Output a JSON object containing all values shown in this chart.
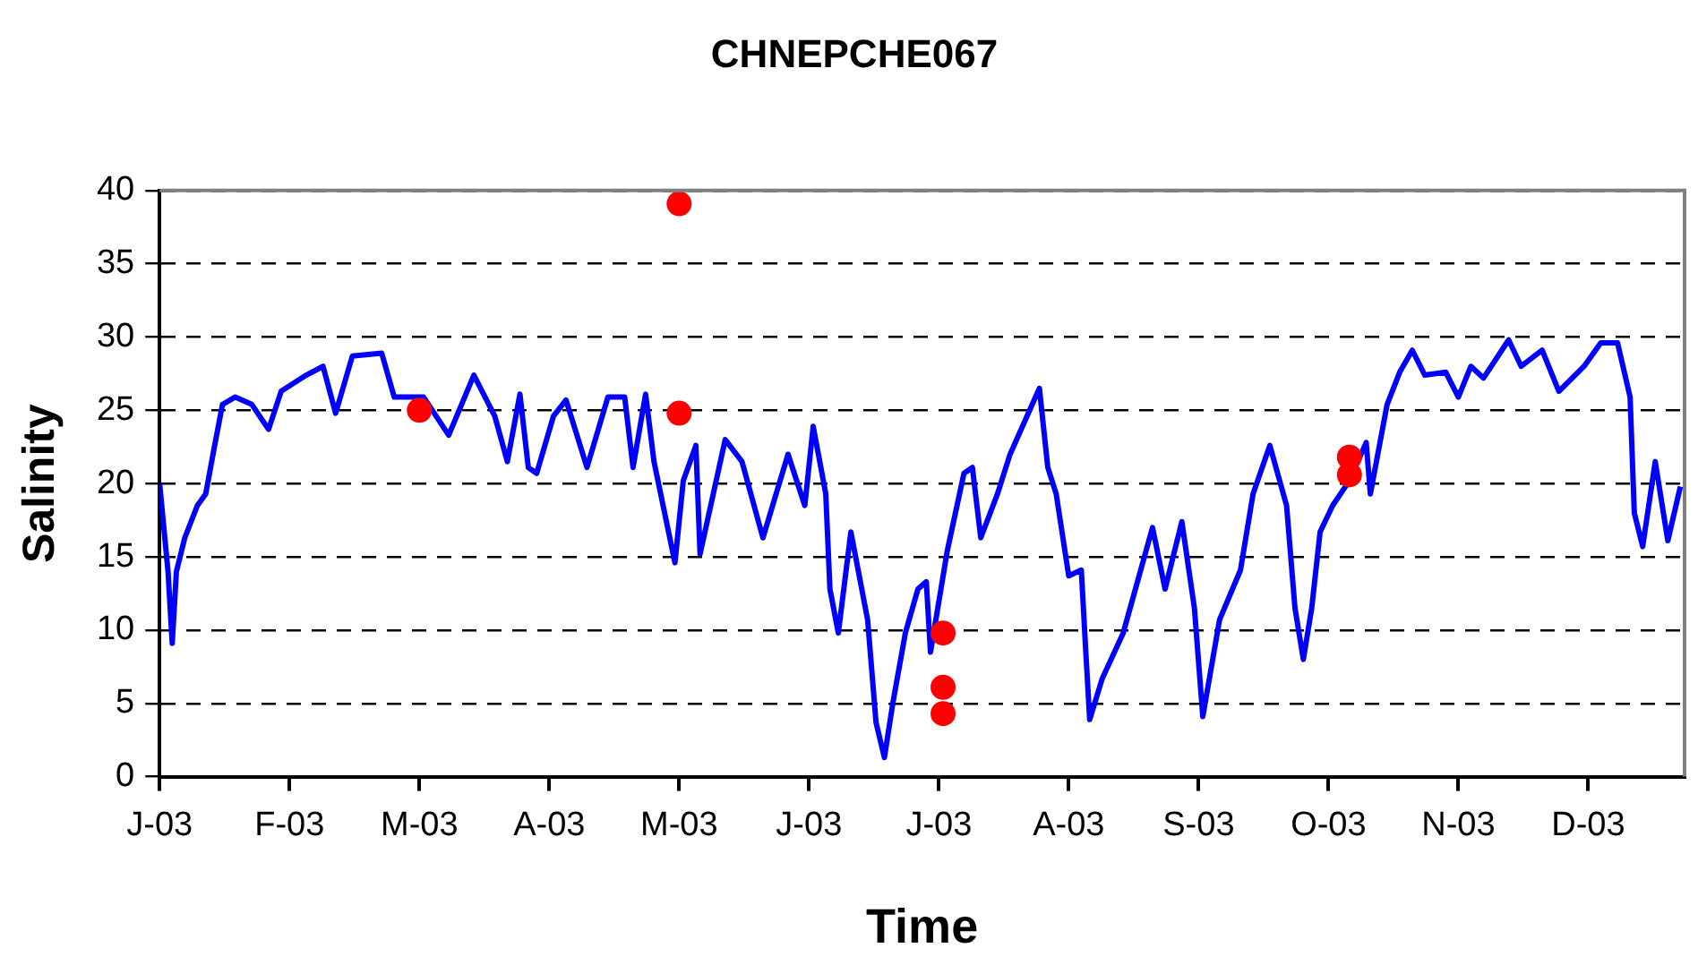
{
  "chart_data": {
    "type": "line",
    "title": "CHNEPCHE067",
    "xlabel": "Time",
    "ylabel": "Salinity",
    "xlim": [
      "2003-01-01",
      "2003-12-31"
    ],
    "xticks": [
      {
        "value": "2003-01-01",
        "label": "J-03"
      },
      {
        "value": "2003-02-01",
        "label": "F-03"
      },
      {
        "value": "2003-03-04",
        "label": "M-03"
      },
      {
        "value": "2003-04-04",
        "label": "A-03"
      },
      {
        "value": "2003-05-05",
        "label": "M-03"
      },
      {
        "value": "2003-06-05",
        "label": "J-03"
      },
      {
        "value": "2003-07-06",
        "label": "J-03"
      },
      {
        "value": "2003-08-06",
        "label": "A-03"
      },
      {
        "value": "2003-09-06",
        "label": "S-03"
      },
      {
        "value": "2003-10-07",
        "label": "O-03"
      },
      {
        "value": "2003-11-07",
        "label": "N-03"
      },
      {
        "value": "2003-12-08",
        "label": "D-03"
      }
    ],
    "ylim": [
      0,
      40
    ],
    "yticks": [
      0,
      5,
      10,
      15,
      20,
      25,
      30,
      35,
      40
    ],
    "grid": "y",
    "series": [
      {
        "type": "line",
        "color": "#0000ff",
        "x": [
          "2003-01-01",
          "2003-01-03",
          "2003-01-04",
          "2003-01-05",
          "2003-01-07",
          "2003-01-10",
          "2003-01-12",
          "2003-01-14",
          "2003-01-16",
          "2003-01-19",
          "2003-01-23",
          "2003-01-27",
          "2003-01-30",
          "2003-02-05",
          "2003-02-09",
          "2003-02-12",
          "2003-02-16",
          "2003-02-23",
          "2003-02-26",
          "2003-03-05",
          "2003-03-11",
          "2003-03-17",
          "2003-03-22",
          "2003-03-25",
          "2003-03-28",
          "2003-03-30",
          "2003-04-01",
          "2003-04-05",
          "2003-04-08",
          "2003-04-13",
          "2003-04-18",
          "2003-04-22",
          "2003-04-24",
          "2003-04-27",
          "2003-04-29",
          "2003-05-04",
          "2003-05-06",
          "2003-05-09",
          "2003-05-10",
          "2003-05-16",
          "2003-05-20",
          "2003-05-25",
          "2003-05-31",
          "2003-06-04",
          "2003-06-06",
          "2003-06-09",
          "2003-06-10",
          "2003-06-12",
          "2003-06-15",
          "2003-06-19",
          "2003-06-21",
          "2003-06-23",
          "2003-06-25",
          "2003-06-28",
          "2003-07-01",
          "2003-07-03",
          "2003-07-04",
          "2003-07-08",
          "2003-07-12",
          "2003-07-14",
          "2003-07-16",
          "2003-07-20",
          "2003-07-23",
          "2003-07-30",
          "2003-08-01",
          "2003-08-03",
          "2003-08-06",
          "2003-08-09",
          "2003-08-10",
          "2003-08-11",
          "2003-08-14",
          "2003-08-19",
          "2003-08-26",
          "2003-08-29",
          "2003-09-02",
          "2003-09-05",
          "2003-09-07",
          "2003-09-11",
          "2003-09-16",
          "2003-09-19",
          "2003-09-23",
          "2003-09-27",
          "2003-09-29",
          "2003-10-01",
          "2003-10-03",
          "2003-10-05",
          "2003-10-08",
          "2003-10-12",
          "2003-10-16",
          "2003-10-17",
          "2003-10-21",
          "2003-10-24",
          "2003-10-27",
          "2003-10-30",
          "2003-11-04",
          "2003-11-07",
          "2003-11-10",
          "2003-11-13",
          "2003-11-19",
          "2003-11-22",
          "2003-11-27",
          "2003-12-01",
          "2003-12-07",
          "2003-12-11",
          "2003-12-15",
          "2003-12-18",
          "2003-12-19",
          "2003-12-21",
          "2003-12-24",
          "2003-12-27",
          "2003-12-30"
        ],
        "values": [
          20,
          14,
          9.1,
          14,
          16.3,
          18.5,
          19.3,
          22.4,
          25.4,
          25.9,
          25.4,
          23.7,
          26.3,
          27.4,
          28,
          24.8,
          28.7,
          28.9,
          25.9,
          25.9,
          23.3,
          27.4,
          24.6,
          21.5,
          26.1,
          21.1,
          20.7,
          24.6,
          25.7,
          21.1,
          25.9,
          25.9,
          21.1,
          26.1,
          21.5,
          14.6,
          20.2,
          22.6,
          15.2,
          23,
          21.5,
          16.3,
          22,
          18.5,
          23.9,
          19.3,
          12.8,
          9.8,
          16.7,
          10.7,
          3.7,
          1.3,
          5,
          9.8,
          12.8,
          13.3,
          8.5,
          15.4,
          20.7,
          21.1,
          16.3,
          19.3,
          22,
          26.5,
          21.1,
          19.3,
          13.7,
          14.1,
          8.9,
          3.9,
          6.7,
          9.8,
          17,
          12.8,
          17.4,
          11.5,
          4.1,
          10.7,
          14.1,
          19.3,
          22.6,
          18.5,
          11.5,
          8,
          11.5,
          16.7,
          18.5,
          20.2,
          22.8,
          19.3,
          25.4,
          27.6,
          29.1,
          27.4,
          27.6,
          25.9,
          28,
          27.2,
          29.8,
          28,
          29.1,
          26.3,
          28,
          29.6,
          29.6,
          25.9,
          18,
          15.7,
          21.5,
          16.1,
          19.8
        ]
      },
      {
        "type": "scatter",
        "color": "#ff0000",
        "marker": "circle",
        "x": [
          "2003-03-04",
          "2003-05-05",
          "2003-05-05",
          "2003-07-07",
          "2003-07-07",
          "2003-07-07",
          "2003-10-12",
          "2003-10-12"
        ],
        "values": [
          25,
          39.1,
          24.8,
          9.8,
          6.1,
          4.3,
          21.8,
          20.6
        ]
      }
    ]
  }
}
